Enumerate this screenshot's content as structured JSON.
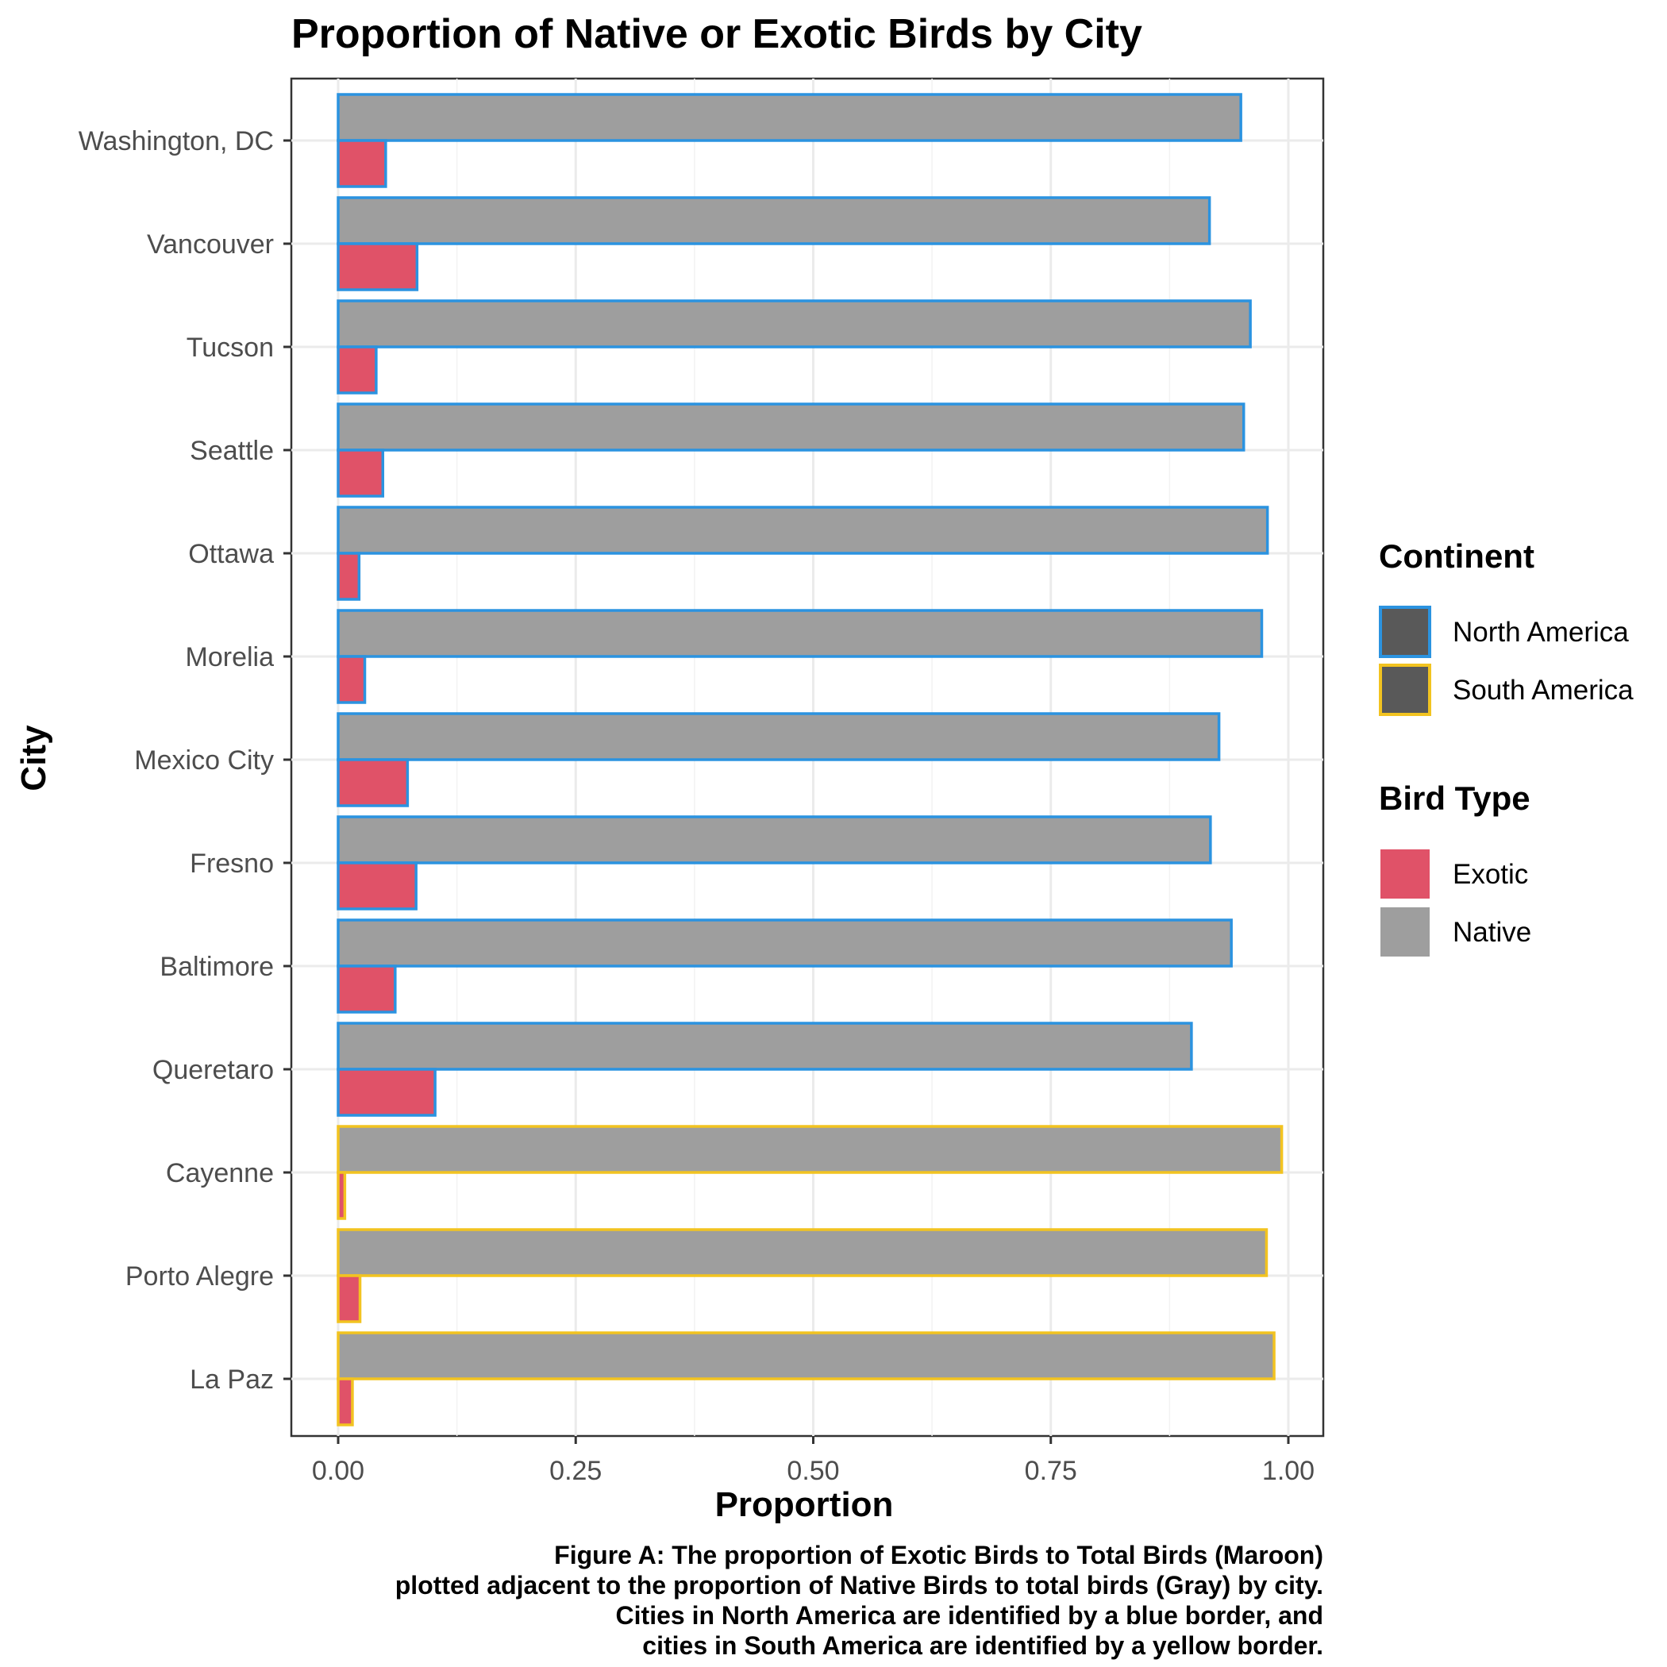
{
  "chart_data": {
    "type": "bar",
    "orientation": "horizontal",
    "title": "Proportion of Native or Exotic Birds by City",
    "xlabel": "Proportion",
    "ylabel": "City",
    "xlim": [
      0,
      1
    ],
    "x_ticks": [
      "0.00",
      "0.25",
      "0.50",
      "0.75",
      "1.00"
    ],
    "x_tick_values": [
      0,
      0.25,
      0.5,
      0.75,
      1.0
    ],
    "grid": true,
    "legend_placement": "right",
    "categories": [
      "Washington, DC",
      "Vancouver",
      "Tucson",
      "Seattle",
      "Ottawa",
      "Morelia",
      "Mexico City",
      "Fresno",
      "Baltimore",
      "Queretaro",
      "Cayenne",
      "Porto Alegre",
      "La Paz"
    ],
    "continent": [
      "North America",
      "North America",
      "North America",
      "North America",
      "North America",
      "North America",
      "North America",
      "North America",
      "North America",
      "North America",
      "South America",
      "South America",
      "South America"
    ],
    "series": [
      {
        "name": "Native",
        "color": "#9e9e9e",
        "values": [
          0.95,
          0.917,
          0.96,
          0.953,
          0.978,
          0.972,
          0.927,
          0.918,
          0.94,
          0.898,
          0.993,
          0.977,
          0.985
        ]
      },
      {
        "name": "Exotic",
        "color": "#e05268",
        "values": [
          0.05,
          0.083,
          0.04,
          0.047,
          0.022,
          0.028,
          0.073,
          0.082,
          0.06,
          0.102,
          0.007,
          0.023,
          0.015
        ]
      }
    ],
    "legends": [
      {
        "title": "Continent",
        "items": [
          {
            "label": "North America",
            "fill": "#595959",
            "border": "#2b93e0"
          },
          {
            "label": "South America",
            "fill": "#595959",
            "border": "#f2c320"
          }
        ]
      },
      {
        "title": "Bird Type",
        "items": [
          {
            "label": "Exotic",
            "fill": "#e05268"
          },
          {
            "label": "Native",
            "fill": "#9e9e9e"
          }
        ]
      }
    ],
    "border_colors": {
      "North America": "#2b93e0",
      "South America": "#f2c320"
    },
    "caption": [
      "Figure A: The proportion of Exotic Birds to Total Birds (Maroon)",
      "plotted adjacent to the proportion of Native Birds to total birds (Gray) by city.",
      "Cities in North America are identified by a blue border, and",
      "cities in South America are identified by a yellow border."
    ]
  }
}
